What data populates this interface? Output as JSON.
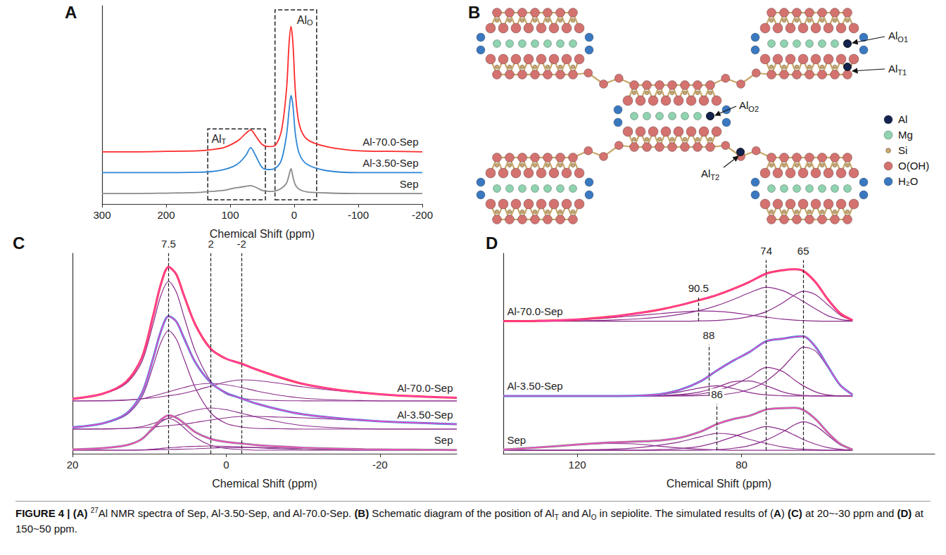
{
  "chart_data": [
    {
      "panel": "A",
      "type": "line",
      "x_label": "Chemical Shift (ppm)",
      "x": [
        300,
        250,
        200,
        150,
        130,
        110,
        95,
        85,
        75,
        68,
        60,
        50,
        40,
        30,
        20,
        12,
        8,
        5,
        2,
        -2,
        -8,
        -20,
        -50,
        -100,
        -150,
        -200
      ],
      "xlim": [
        300,
        -200
      ],
      "xticks": [
        300,
        200,
        100,
        0,
        -100,
        -200
      ],
      "ylim": [
        -0.5,
        9
      ],
      "yticks": [],
      "tick_labels": "x",
      "grid": false,
      "regions": [
        {
          "label": {
            "text": "Al",
            "sub": "T"
          },
          "x": [
            135,
            45
          ],
          "y": [
            -0.3,
            3.1
          ]
        },
        {
          "label": {
            "text": "Al",
            "sub": "O"
          },
          "x": [
            30,
            -35
          ],
          "y": [
            -0.3,
            8.8
          ]
        }
      ],
      "series": [
        {
          "name": "Sep",
          "color": "#8a8a8a",
          "values": [
            0,
            0,
            0.02,
            0.05,
            0.1,
            0.15,
            0.25,
            0.3,
            0.35,
            0.38,
            0.3,
            0.15,
            0.1,
            0.12,
            0.25,
            0.5,
            0.9,
            1.2,
            0.8,
            0.4,
            0.2,
            0.08,
            0.03,
            0,
            0,
            0
          ]
        },
        {
          "name": "Al-3.50-Sep",
          "color": "#2f86d6",
          "values": [
            1.0,
            1.0,
            1.0,
            1.02,
            1.05,
            1.15,
            1.3,
            1.5,
            1.85,
            2.2,
            1.8,
            1.25,
            1.15,
            1.2,
            1.6,
            2.8,
            4.0,
            4.7,
            4.2,
            2.8,
            1.9,
            1.4,
            1.1,
            1.0,
            1.0,
            1.0
          ]
        },
        {
          "name": "Al-70.0-Sep",
          "color": "#ff2a2a",
          "values": [
            2.0,
            2.0,
            2.02,
            2.05,
            2.1,
            2.2,
            2.4,
            2.6,
            2.9,
            3.05,
            2.75,
            2.35,
            2.25,
            2.3,
            3.0,
            5.0,
            7.2,
            8.0,
            7.2,
            4.8,
            3.3,
            2.6,
            2.25,
            2.05,
            2.02,
            2.0
          ]
        }
      ]
    },
    {
      "panel": "C",
      "type": "line",
      "x_label": "Chemical Shift (ppm)",
      "x": [
        20,
        16,
        13,
        11,
        9.5,
        8.5,
        7.5,
        6.5,
        5.5,
        4,
        2,
        0,
        -2,
        -4,
        -7,
        -10,
        -14,
        -18,
        -22,
        -26,
        -30
      ],
      "xlim": [
        20,
        -30
      ],
      "xticks": [
        20,
        0,
        -20
      ],
      "ylim": [
        -0.5,
        28
      ],
      "yticks": [],
      "tick_labels": "x",
      "grid": false,
      "fit_color": "#ff44cc",
      "component_color": "#8b2c8b",
      "lines": [
        {
          "x": 7.5
        },
        {
          "x": 2
        },
        {
          "x": -2
        }
      ],
      "series": [
        {
          "name": "Sep",
          "color": "#8a8a8a",
          "values": [
            0.1,
            0.3,
            0.7,
            1.57,
            3.2,
            4.33,
            4.95,
            4.62,
            3.85,
            2.55,
            1.6,
            1.18,
            0.95,
            0.73,
            0.52,
            0.35,
            0.23,
            0.12,
            0.08,
            0.05,
            0.03
          ],
          "fit": [
            0.1,
            0.3,
            0.7,
            1.57,
            3.2,
            4.33,
            4.95,
            4.62,
            3.85,
            2.55,
            1.6,
            1.18,
            0.95,
            0.73,
            0.52,
            0.35,
            0.23,
            0.12,
            0.08,
            0.05,
            0.03
          ],
          "components": [
            [
              0.1,
              0.3,
              0.7,
              1.5,
              3,
              4,
              4.5,
              4.1,
              3.2,
              1.8,
              0.7,
              0.25,
              0.1,
              0,
              0,
              0,
              0,
              0,
              0,
              0,
              0
            ],
            [
              0,
              0,
              0,
              0.05,
              0.15,
              0.25,
              0.35,
              0.4,
              0.5,
              0.55,
              0.6,
              0.55,
              0.45,
              0.35,
              0.2,
              0.1,
              0.05,
              0,
              0,
              0,
              0
            ],
            [
              0,
              0,
              0,
              0.02,
              0.05,
              0.08,
              0.1,
              0.12,
              0.15,
              0.2,
              0.3,
              0.38,
              0.4,
              0.38,
              0.32,
              0.25,
              0.18,
              0.12,
              0.08,
              0.05,
              0.03
            ]
          ]
        },
        {
          "name": "Al-3.50-Sep",
          "color": "#2f86d6",
          "values": [
            3.25,
            3.83,
            5.2,
            8.05,
            13.1,
            16.9,
            19.05,
            18.3,
            15.95,
            12.45,
            9.6,
            8.15,
            7.35,
            6.6,
            5.75,
            5.1,
            4.6,
            4.25,
            4,
            3.85,
            3.7
          ],
          "fit": [
            3.25,
            3.83,
            5.2,
            8.05,
            13.1,
            16.9,
            19.05,
            18.3,
            15.95,
            12.45,
            9.6,
            8.15,
            7.35,
            6.6,
            5.75,
            5.1,
            4.6,
            4.25,
            4,
            3.85,
            3.7
          ],
          "components": [
            [
              3.25,
              3.8,
              5,
              7.5,
              12,
              15.3,
              17,
              15.8,
              13,
              8.8,
              5.3,
              3.8,
              3.3,
              3.1,
              3.05,
              3,
              3,
              3,
              3,
              3,
              3
            ],
            [
              3,
              3,
              3.1,
              3.35,
              3.8,
              4.2,
              4.55,
              4.9,
              5.25,
              5.7,
              6,
              5.75,
              5.25,
              4.7,
              4,
              3.5,
              3.2,
              3.05,
              3,
              3,
              3
            ],
            [
              3,
              3.03,
              3.1,
              3.2,
              3.3,
              3.4,
              3.5,
              3.6,
              3.7,
              3.95,
              4.3,
              4.6,
              4.8,
              4.8,
              4.7,
              4.6,
              4.4,
              4.2,
              4,
              3.85,
              3.7
            ]
          ]
        },
        {
          "name": "Al-70.0-Sep",
          "color": "#ff2a2a",
          "values": [
            7.3,
            8.05,
            9.75,
            13.1,
            19.15,
            23.6,
            26.05,
            25,
            22,
            17.8,
            14.4,
            13,
            12.3,
            11.45,
            10.35,
            9.42,
            8.65,
            8.15,
            7.8,
            7.6,
            7.45
          ],
          "fit": [
            7.3,
            8.05,
            9.75,
            13.1,
            19.15,
            23.6,
            26.05,
            25,
            22,
            17.8,
            14.4,
            13,
            12.3,
            11.45,
            10.35,
            9.42,
            8.65,
            8.15,
            7.8,
            7.6,
            7.45
          ],
          "components": [
            [
              7.3,
              8,
              9.5,
              12.5,
              18,
              22,
              24,
              22.5,
              19,
              14,
              9.8,
              8,
              7.4,
              7.15,
              7.05,
              7.02,
              7,
              7,
              7,
              7,
              7
            ],
            [
              7,
              7,
              7.1,
              7.3,
              7.7,
              8,
              8.3,
              8.6,
              8.9,
              9.3,
              9.5,
              9.3,
              8.9,
              8.4,
              7.8,
              7.4,
              7.15,
              7.05,
              7,
              7,
              7
            ],
            [
              7,
              7.05,
              7.15,
              7.3,
              7.45,
              7.6,
              7.75,
              7.9,
              8.1,
              8.5,
              9.1,
              9.7,
              10,
              9.9,
              9.5,
              9,
              8.5,
              8.1,
              7.8,
              7.6,
              7.45
            ]
          ]
        }
      ]
    },
    {
      "panel": "D",
      "type": "line",
      "x_label": "Chemical Shift (ppm)",
      "x": [
        138,
        130,
        120,
        112,
        105,
        100,
        95,
        90,
        86,
        82,
        78,
        74,
        70,
        67,
        65,
        62,
        59,
        56,
        53
      ],
      "xlim": [
        138,
        33
      ],
      "xticks": [
        120,
        80
      ],
      "ylim": [
        -0.5,
        29
      ],
      "yticks": [],
      "tick_labels": "x",
      "grid": false,
      "fit_color": "#ff44cc",
      "component_color": "#8b2c8b",
      "lines": [
        {
          "x": 90.5,
          "y": [
            19,
            22.5
          ]
        },
        {
          "x": 88,
          "y": [
            8,
            15.5
          ]
        },
        {
          "x": 86,
          "y": [
            0,
            6.8
          ]
        },
        {
          "x": 74,
          "y": [
            0,
            28
          ]
        },
        {
          "x": 65,
          "y": [
            0,
            28
          ]
        }
      ],
      "series": [
        {
          "name": "Sep",
          "color": "#8a8a8a",
          "values": [
            0.1,
            0.4,
            0.85,
            1.15,
            1.3,
            1.45,
            1.85,
            2.75,
            3.85,
            4.6,
            5.1,
            6.0,
            6.2,
            6.25,
            5.95,
            4.58,
            2.6,
            0.95,
            0.1
          ],
          "fit": [
            0.1,
            0.4,
            0.85,
            1.15,
            1.3,
            1.45,
            1.85,
            2.75,
            3.85,
            4.6,
            5.1,
            6.0,
            6.2,
            6.25,
            5.95,
            4.58,
            2.6,
            0.95,
            0.1
          ],
          "components": [
            [
              0.1,
              0.4,
              0.8,
              1.0,
              0.9,
              0.6,
              0.35,
              0.15,
              0.05,
              0,
              0,
              0,
              0,
              0,
              0,
              0,
              0,
              0,
              0
            ],
            [
              0,
              0,
              0.05,
              0.15,
              0.4,
              0.75,
              1.25,
              2.0,
              2.5,
              2.3,
              1.6,
              1.0,
              0.5,
              0.25,
              0.15,
              0.08,
              0,
              0,
              0
            ],
            [
              0,
              0,
              0,
              0,
              0,
              0.1,
              0.25,
              0.6,
              1.2,
              2,
              2.8,
              3.5,
              3,
              2.2,
              1.6,
              0.9,
              0.4,
              0.15,
              0
            ],
            [
              0,
              0,
              0,
              0,
              0,
              0,
              0,
              0,
              0.1,
              0.3,
              0.7,
              1.5,
              2.7,
              3.8,
              4.2,
              3.6,
              2.2,
              0.8,
              0.1
            ]
          ]
        },
        {
          "name": "Al-3.50-Sep",
          "color": "#2f86d6",
          "values": [
            8,
            8,
            8,
            8,
            8.05,
            8.25,
            8.9,
            10.15,
            11.75,
            13.2,
            14.5,
            16.05,
            16.43,
            16.7,
            16.78,
            15.2,
            12.35,
            9.6,
            8.2
          ],
          "fit": [
            8,
            8,
            8,
            8,
            8.05,
            8.25,
            8.9,
            10.15,
            11.75,
            13.2,
            14.5,
            16.05,
            16.43,
            16.7,
            16.78,
            15.2,
            12.35,
            9.6,
            8.2
          ],
          "components": [
            [
              8,
              8,
              8,
              8,
              8.05,
              8.2,
              8.6,
              9.2,
              9.5,
              9.1,
              8.5,
              8.15,
              8.03,
              8,
              8,
              8,
              8,
              8,
              8
            ],
            [
              8,
              8,
              8,
              8,
              8,
              8.05,
              8.2,
              8.6,
              9.3,
              10.1,
              10.2,
              9.5,
              8.6,
              8.2,
              8.08,
              8,
              8,
              8,
              8
            ],
            [
              8,
              8,
              8,
              8,
              8,
              8,
              8.1,
              8.3,
              8.8,
              9.6,
              10.8,
              12.2,
              11.6,
              10.3,
              9.5,
              8.6,
              8.15,
              8,
              8
            ],
            [
              8,
              8,
              8,
              8,
              8,
              8,
              8,
              8.05,
              8.15,
              8.4,
              9,
              10.2,
              12.2,
              14.2,
              15.2,
              14.6,
              12.2,
              9.6,
              8.2
            ]
          ]
        },
        {
          "name": "Al-70.0-Sep",
          "color": "#ff2a2a",
          "values": [
            19,
            19.05,
            19.25,
            19.65,
            20.2,
            20.7,
            21.35,
            22.15,
            22.85,
            23.75,
            24.8,
            26,
            26.5,
            26.65,
            26.4,
            24.73,
            22.2,
            20.15,
            19.15
          ],
          "fit": [
            19,
            19.05,
            19.25,
            19.65,
            20.2,
            20.7,
            21.35,
            22.15,
            22.85,
            23.75,
            24.8,
            26,
            26.5,
            26.65,
            26.4,
            24.73,
            22.2,
            20.15,
            19.15
          ],
          "components": [
            [
              19,
              19.05,
              19.2,
              19.5,
              19.85,
              20.1,
              20.35,
              20.5,
              20.45,
              20.25,
              19.9,
              19.6,
              19.3,
              19.15,
              19.1,
              19.03,
              19,
              19,
              19
            ],
            [
              19,
              19,
              19.05,
              19.15,
              19.35,
              19.6,
              20,
              20.6,
              21.3,
              22.2,
              23.2,
              24,
              23.5,
              22.6,
              21.9,
              20.8,
              19.8,
              19.25,
              19.05
            ],
            [
              19,
              19,
              19,
              19,
              19,
              19,
              19,
              19.05,
              19.1,
              19.3,
              19.7,
              20.4,
              21.7,
              22.9,
              23.4,
              22.9,
              21.4,
              19.9,
              19.1
            ]
          ]
        }
      ]
    }
  ],
  "schematic": {
    "panel": "B",
    "labels": [
      {
        "text": "Al",
        "sub": "O1"
      },
      {
        "text": "Al",
        "sub": "T1"
      },
      {
        "text": "Al",
        "sub": "O2"
      },
      {
        "text": "Al",
        "sub": "T2"
      }
    ],
    "legend": [
      {
        "label": "Al",
        "color": "#14234f"
      },
      {
        "label": "Mg",
        "color": "#8fd3b0"
      },
      {
        "label": "Si",
        "color": "#c9a66b"
      },
      {
        "label": "O(OH)",
        "color": "#d4726f"
      },
      {
        "label": "H₂O",
        "color": "#3a78c0"
      }
    ]
  },
  "caption": [
    {
      "text": "FIGURE 4 | ",
      "bold": true
    },
    {
      "text": "(A) ",
      "bold": true
    },
    {
      "text": "27",
      "sup": true
    },
    {
      "text": "Al NMR spectra of Sep, Al-3.50-Sep, and Al-70.0-Sep. "
    },
    {
      "text": "(B)",
      "bold": true
    },
    {
      "text": " Schematic diagram of the position of Al"
    },
    {
      "text": "T",
      "sub": true
    },
    {
      "text": " and Al"
    },
    {
      "text": "O",
      "sub": true
    },
    {
      "text": " in sepiolite. The simulated results of ("
    },
    {
      "text": "A",
      "bold": true
    },
    {
      "text": ") "
    },
    {
      "text": "(C)",
      "bold": true
    },
    {
      "text": " at 20~-30 ppm and "
    },
    {
      "text": "(D)",
      "bold": true
    },
    {
      "text": " at 150~50 ppm."
    }
  ]
}
